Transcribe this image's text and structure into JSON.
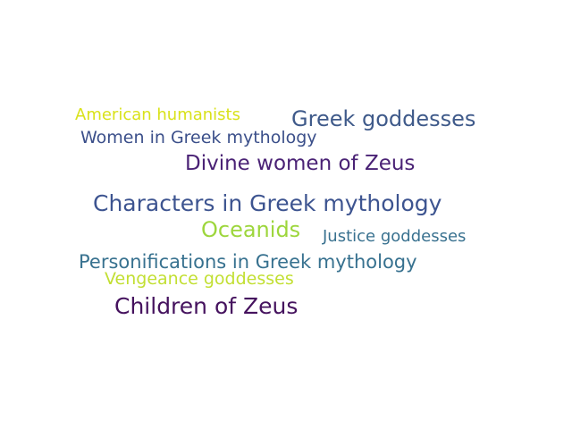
{
  "words": [
    {
      "text": "American humanists",
      "color": "#d9e21a"
    },
    {
      "text": "Greek goddesses",
      "color": "#3f5a8a"
    },
    {
      "text": "Women in Greek mythology",
      "color": "#3b4f8a"
    },
    {
      "text": "Divine women of Zeus",
      "color": "#4a2275"
    },
    {
      "text": "Characters in Greek mythology",
      "color": "#3d5490"
    },
    {
      "text": "Oceanids",
      "color": "#9dd63c"
    },
    {
      "text": "Justice goddesses",
      "color": "#3a7290"
    },
    {
      "text": "Personifications in Greek mythology",
      "color": "#37718f"
    },
    {
      "text": "Vengeance goddesses",
      "color": "#c2df32"
    },
    {
      "text": "Children of Zeus",
      "color": "#45125e"
    }
  ]
}
